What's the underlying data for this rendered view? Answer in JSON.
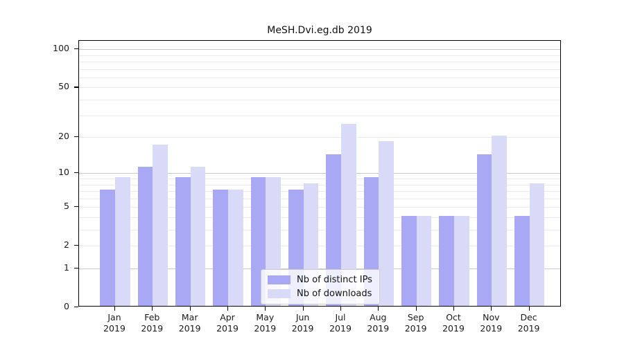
{
  "title": "MeSH.Dvi.eg.db 2019",
  "colors": {
    "ips_bar": "#a8a8f4",
    "downloads_bar": "#d9d9f8",
    "grid_major": "#c9c9c9",
    "grid_minor": "#ebebeb",
    "axis": "#000000",
    "legend_border": "#cccccc"
  },
  "legend": {
    "items": [
      {
        "label": "Nb of distinct IPs",
        "color_key": "ips_bar"
      },
      {
        "label": "Nb of downloads",
        "color_key": "downloads_bar"
      }
    ]
  },
  "chart_data": {
    "type": "bar",
    "title": "MeSH.Dvi.eg.db 2019",
    "categories": [
      {
        "month": "Jan",
        "year": "2019"
      },
      {
        "month": "Feb",
        "year": "2019"
      },
      {
        "month": "Mar",
        "year": "2019"
      },
      {
        "month": "Apr",
        "year": "2019"
      },
      {
        "month": "May",
        "year": "2019"
      },
      {
        "month": "Jun",
        "year": "2019"
      },
      {
        "month": "Jul",
        "year": "2019"
      },
      {
        "month": "Aug",
        "year": "2019"
      },
      {
        "month": "Sep",
        "year": "2019"
      },
      {
        "month": "Oct",
        "year": "2019"
      },
      {
        "month": "Nov",
        "year": "2019"
      },
      {
        "month": "Dec",
        "year": "2019"
      }
    ],
    "series": [
      {
        "name": "Nb of distinct IPs",
        "color_key": "ips_bar",
        "values": [
          7,
          11,
          9,
          7,
          9,
          7,
          14,
          9,
          4,
          4,
          14,
          4
        ]
      },
      {
        "name": "Nb of downloads",
        "color_key": "downloads_bar",
        "values": [
          9,
          17,
          11,
          7,
          9,
          8,
          25,
          18,
          4,
          4,
          20,
          8
        ]
      }
    ],
    "xlabel": "",
    "ylabel": "",
    "y_scale": "log10(x+1)",
    "y_ticks": [
      0,
      1,
      2,
      5,
      10,
      20,
      50,
      100
    ],
    "y_major_gridlines": [
      1,
      10,
      100
    ],
    "y_minor_gridlines": [
      2,
      3,
      4,
      5,
      6,
      7,
      8,
      9,
      20,
      30,
      40,
      50,
      60,
      70,
      80,
      90
    ],
    "ylim": [
      0,
      120
    ],
    "grid": "horizontal",
    "legend_position": "lower center"
  }
}
